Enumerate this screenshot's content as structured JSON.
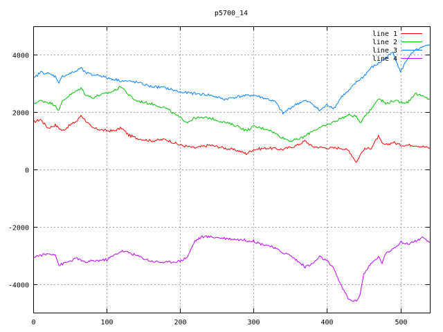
{
  "chart_data": {
    "type": "line",
    "title": "p5700_14",
    "xlabel": "",
    "ylabel": "",
    "xlim": [
      0,
      540
    ],
    "ylim": [
      -5000,
      5000
    ],
    "x_ticks": [
      0,
      100,
      200,
      300,
      400,
      500
    ],
    "y_ticks": [
      -4000,
      -2000,
      0,
      2000,
      4000
    ],
    "grid": true,
    "legend_position": "top-right",
    "series": [
      {
        "name": "line 1",
        "color": "#ff0000",
        "x": [
          0,
          10,
          20,
          30,
          40,
          50,
          60,
          65,
          70,
          80,
          90,
          100,
          110,
          120,
          130,
          140,
          160,
          180,
          200,
          220,
          240,
          260,
          280,
          290,
          300,
          320,
          340,
          360,
          370,
          380,
          400,
          420,
          430,
          440,
          445,
          450,
          460,
          470,
          475,
          480,
          490,
          500,
          520,
          540
        ],
        "y": [
          1650,
          1750,
          1450,
          1550,
          1350,
          1550,
          1700,
          1900,
          1750,
          1450,
          1400,
          1350,
          1350,
          1450,
          1200,
          1100,
          1000,
          1050,
          850,
          750,
          850,
          750,
          650,
          550,
          700,
          750,
          700,
          850,
          1000,
          800,
          750,
          750,
          650,
          250,
          500,
          700,
          750,
          1150,
          900,
          850,
          950,
          850,
          850,
          750
        ]
      },
      {
        "name": "line 2",
        "color": "#00c000",
        "x": [
          0,
          10,
          20,
          30,
          35,
          40,
          50,
          60,
          65,
          70,
          80,
          90,
          100,
          110,
          120,
          130,
          140,
          160,
          180,
          200,
          210,
          220,
          240,
          260,
          280,
          290,
          300,
          320,
          340,
          350,
          360,
          370,
          380,
          400,
          420,
          430,
          440,
          445,
          450,
          460,
          470,
          480,
          490,
          500,
          510,
          520,
          540
        ],
        "y": [
          2300,
          2400,
          2350,
          2250,
          2050,
          2400,
          2600,
          2750,
          2850,
          2650,
          2500,
          2600,
          2650,
          2750,
          2900,
          2600,
          2400,
          2300,
          2150,
          1800,
          1650,
          1800,
          1800,
          1650,
          1500,
          1350,
          1500,
          1400,
          1100,
          1000,
          1050,
          1150,
          1350,
          1550,
          1800,
          1900,
          1850,
          1600,
          1850,
          2100,
          2500,
          2300,
          2400,
          2350,
          2350,
          2650,
          2450
        ]
      },
      {
        "name": "line 3",
        "color": "#0080ff",
        "x": [
          0,
          10,
          20,
          30,
          35,
          40,
          50,
          60,
          65,
          70,
          80,
          90,
          100,
          110,
          120,
          140,
          160,
          180,
          200,
          220,
          240,
          260,
          280,
          300,
          320,
          330,
          340,
          350,
          360,
          370,
          380,
          390,
          400,
          410,
          420,
          430,
          440,
          450,
          460,
          470,
          480,
          490,
          500,
          510,
          520,
          530,
          540
        ],
        "y": [
          3150,
          3400,
          3350,
          3250,
          3050,
          3250,
          3350,
          3450,
          3550,
          3400,
          3300,
          3300,
          3200,
          3150,
          3100,
          3050,
          2900,
          2850,
          2700,
          2650,
          2600,
          2450,
          2550,
          2600,
          2450,
          2350,
          1950,
          2150,
          2300,
          2400,
          2300,
          2050,
          2250,
          2150,
          2550,
          2750,
          3050,
          3250,
          3550,
          3700,
          3900,
          4100,
          3400,
          3900,
          4150,
          4250,
          4350
        ]
      },
      {
        "name": "line 4",
        "color": "#c000ff",
        "x": [
          0,
          10,
          20,
          30,
          35,
          40,
          50,
          60,
          70,
          80,
          100,
          110,
          120,
          130,
          140,
          160,
          180,
          200,
          210,
          220,
          230,
          240,
          260,
          280,
          300,
          310,
          320,
          340,
          350,
          360,
          370,
          380,
          390,
          400,
          410,
          420,
          430,
          440,
          445,
          450,
          460,
          470,
          475,
          480,
          490,
          500,
          510,
          520,
          530,
          540
        ],
        "y": [
          -3050,
          -3000,
          -2950,
          -2950,
          -3350,
          -3300,
          -3200,
          -3100,
          -3250,
          -3200,
          -3150,
          -3000,
          -2850,
          -2900,
          -3000,
          -3200,
          -3250,
          -3200,
          -3050,
          -2500,
          -2350,
          -2350,
          -2400,
          -2450,
          -2500,
          -2600,
          -2650,
          -2900,
          -3000,
          -3200,
          -3400,
          -3300,
          -3050,
          -3200,
          -3500,
          -4100,
          -4550,
          -4600,
          -4350,
          -3650,
          -3300,
          -3050,
          -3250,
          -2950,
          -2750,
          -2550,
          -2600,
          -2500,
          -2400,
          -2550
        ]
      }
    ]
  }
}
